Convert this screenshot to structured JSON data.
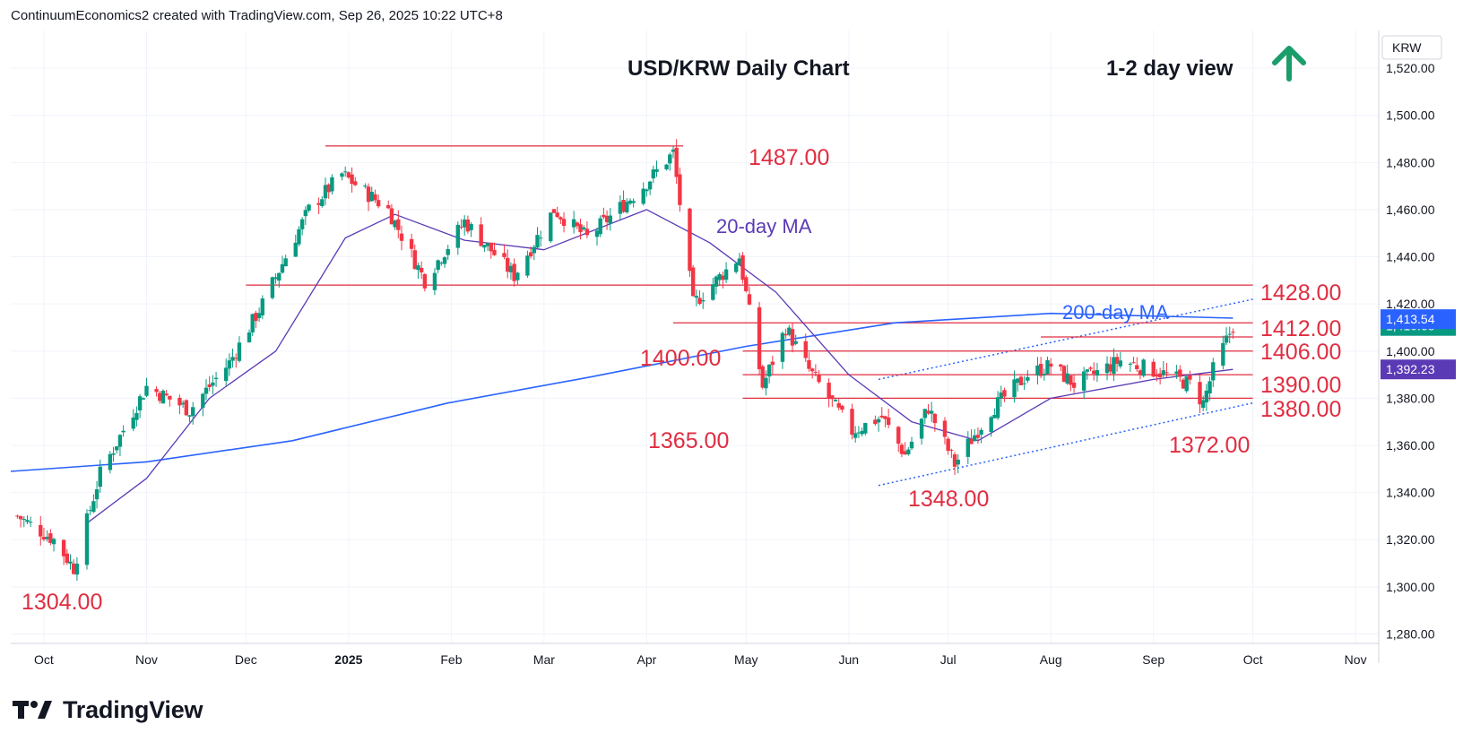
{
  "header": "ContinuumEconomics2 created with TradingView.com, Sep 26, 2025 10:22 UTC+8",
  "brand": "TradingView",
  "colors": {
    "up": "#089981",
    "down": "#f23645",
    "level": "#e02d41",
    "ma20": "#5b3ab6",
    "ma200": "#2962ff",
    "channel": "#2962ff",
    "arrow": "#1a9e6a",
    "grid": "#f0f3fa"
  },
  "chart_data": {
    "type": "candlestick",
    "title": "USD/KRW Daily Chart",
    "subtitle": "1-2 day view",
    "outlook_icon": "up-arrow-icon",
    "y_axis": {
      "currency": "KRW",
      "ylim": [
        1276,
        1536
      ],
      "ticks": [
        "1,280.00",
        "1,300.00",
        "1,320.00",
        "1,340.00",
        "1,360.00",
        "1,380.00",
        "1,400.00",
        "1,420.00",
        "1,440.00",
        "1,460.00",
        "1,480.00",
        "1,500.00",
        "1,520.00"
      ],
      "tick_values": [
        1280,
        1300,
        1320,
        1340,
        1360,
        1380,
        1400,
        1420,
        1440,
        1460,
        1480,
        1500,
        1520
      ]
    },
    "x_axis": {
      "range": [
        "2024-09-21",
        "2025-11-08"
      ],
      "month_labels": [
        {
          "label": "Oct",
          "date": "2024-10-01"
        },
        {
          "label": "Nov",
          "date": "2024-11-01"
        },
        {
          "label": "Dec",
          "date": "2024-12-01"
        },
        {
          "label": "2025",
          "date": "2025-01-01",
          "bold": true
        },
        {
          "label": "Feb",
          "date": "2025-02-01"
        },
        {
          "label": "Mar",
          "date": "2025-03-01"
        },
        {
          "label": "Apr",
          "date": "2025-04-01"
        },
        {
          "label": "May",
          "date": "2025-05-01"
        },
        {
          "label": "Jun",
          "date": "2025-06-01"
        },
        {
          "label": "Jul",
          "date": "2025-07-01"
        },
        {
          "label": "Aug",
          "date": "2025-08-01"
        },
        {
          "label": "Sep",
          "date": "2025-09-01"
        },
        {
          "label": "Oct",
          "date": "2025-10-01"
        },
        {
          "label": "Nov",
          "date": "2025-11-01"
        }
      ]
    },
    "price_path": [
      {
        "date": "2024-09-23",
        "close": 1330
      },
      {
        "date": "2024-10-04",
        "close": 1320
      },
      {
        "date": "2024-10-10",
        "close": 1308
      },
      {
        "date": "2024-10-18",
        "close": 1348
      },
      {
        "date": "2024-11-01",
        "close": 1385
      },
      {
        "date": "2024-11-14",
        "close": 1375
      },
      {
        "date": "2024-11-26",
        "close": 1395
      },
      {
        "date": "2024-12-06",
        "close": 1420
      },
      {
        "date": "2024-12-20",
        "close": 1460
      },
      {
        "date": "2024-12-30",
        "close": 1475
      },
      {
        "date": "2025-01-13",
        "close": 1460
      },
      {
        "date": "2025-01-24",
        "close": 1430
      },
      {
        "date": "2025-02-05",
        "close": 1455
      },
      {
        "date": "2025-02-20",
        "close": 1432
      },
      {
        "date": "2025-03-04",
        "close": 1460
      },
      {
        "date": "2025-03-14",
        "close": 1448
      },
      {
        "date": "2025-03-31",
        "close": 1470
      },
      {
        "date": "2025-04-09",
        "close": 1484
      },
      {
        "date": "2025-04-15",
        "close": 1420
      },
      {
        "date": "2025-04-29",
        "close": 1440
      },
      {
        "date": "2025-05-06",
        "close": 1385
      },
      {
        "date": "2025-05-13",
        "close": 1410
      },
      {
        "date": "2025-05-20",
        "close": 1392
      },
      {
        "date": "2025-06-02",
        "close": 1366
      },
      {
        "date": "2025-06-11",
        "close": 1372
      },
      {
        "date": "2025-06-18",
        "close": 1356
      },
      {
        "date": "2025-06-25",
        "close": 1376
      },
      {
        "date": "2025-07-03",
        "close": 1352
      },
      {
        "date": "2025-07-14",
        "close": 1375
      },
      {
        "date": "2025-07-25",
        "close": 1390
      },
      {
        "date": "2025-08-01",
        "close": 1394
      },
      {
        "date": "2025-08-08",
        "close": 1386
      },
      {
        "date": "2025-08-22",
        "close": 1396
      },
      {
        "date": "2025-09-03",
        "close": 1391
      },
      {
        "date": "2025-09-12",
        "close": 1386
      },
      {
        "date": "2025-09-16",
        "close": 1378
      },
      {
        "date": "2025-09-19",
        "close": 1392
      },
      {
        "date": "2025-09-25",
        "close": 1410.7
      }
    ],
    "ma20_path": [
      {
        "date": "2024-10-14",
        "value": 1327
      },
      {
        "date": "2024-11-01",
        "value": 1346
      },
      {
        "date": "2024-11-20",
        "value": 1380
      },
      {
        "date": "2024-12-10",
        "value": 1400
      },
      {
        "date": "2024-12-31",
        "value": 1448
      },
      {
        "date": "2025-01-15",
        "value": 1458
      },
      {
        "date": "2025-02-05",
        "value": 1447
      },
      {
        "date": "2025-03-01",
        "value": 1443
      },
      {
        "date": "2025-04-01",
        "value": 1460
      },
      {
        "date": "2025-04-20",
        "value": 1446
      },
      {
        "date": "2025-05-10",
        "value": 1425
      },
      {
        "date": "2025-06-01",
        "value": 1390
      },
      {
        "date": "2025-06-20",
        "value": 1370
      },
      {
        "date": "2025-07-10",
        "value": 1362
      },
      {
        "date": "2025-08-01",
        "value": 1380
      },
      {
        "date": "2025-09-01",
        "value": 1388
      },
      {
        "date": "2025-09-25",
        "value": 1392.23
      }
    ],
    "ma200_path": [
      {
        "date": "2024-09-21",
        "value": 1349
      },
      {
        "date": "2024-11-01",
        "value": 1353
      },
      {
        "date": "2024-12-15",
        "value": 1362
      },
      {
        "date": "2025-01-31",
        "value": 1378
      },
      {
        "date": "2025-03-15",
        "value": 1389
      },
      {
        "date": "2025-05-01",
        "value": 1402
      },
      {
        "date": "2025-06-15",
        "value": 1412
      },
      {
        "date": "2025-08-01",
        "value": 1416
      },
      {
        "date": "2025-09-25",
        "value": 1414
      }
    ],
    "levels": [
      {
        "value": 1487,
        "label": "1487.00",
        "start": "2024-12-25",
        "end": "2025-04-12",
        "label_side": "right"
      },
      {
        "value": 1428,
        "label": "1428.00",
        "start": "2024-12-01",
        "end": "2025-10-01",
        "label_side": "right"
      },
      {
        "value": 1412,
        "label": "1412.00",
        "start": "2025-04-09",
        "end": "2025-10-01",
        "label_side": "right"
      },
      {
        "value": 1406,
        "label": "1406.00",
        "start": "2025-07-29",
        "end": "2025-10-01",
        "label_side": "right"
      },
      {
        "value": 1400,
        "label": "1400.00",
        "start": "2025-04-30",
        "end": "2025-10-01",
        "label_side": "right"
      },
      {
        "value": 1390,
        "label": "1390.00",
        "start": "2025-04-30",
        "end": "2025-10-01",
        "label_side": "right"
      },
      {
        "value": 1380,
        "label": "1380.00",
        "start": "2025-04-30",
        "end": "2025-10-01",
        "label_side": "right"
      }
    ],
    "annotations": [
      {
        "text": "1487.00"
      },
      {
        "text": "1428.00"
      },
      {
        "text": "1412.00"
      },
      {
        "text": "1406.00"
      },
      {
        "text": "1400.00"
      },
      {
        "text": "1390.00"
      },
      {
        "text": "1380.00"
      },
      {
        "text": "1372.00"
      },
      {
        "text": "1365.00"
      },
      {
        "text": "1348.00"
      },
      {
        "text": "1304.00"
      },
      {
        "text": "20-day MA"
      },
      {
        "text": "200-day MA"
      }
    ],
    "channel": {
      "upper": [
        {
          "date": "2025-06-10",
          "value": 1388
        },
        {
          "date": "2025-10-01",
          "value": 1422
        }
      ],
      "lower": [
        {
          "date": "2025-06-10",
          "value": 1343
        },
        {
          "date": "2025-10-01",
          "value": 1378
        }
      ]
    },
    "price_tags": [
      {
        "text": "1,410.68",
        "value": 1410.68,
        "kind": "last"
      },
      {
        "text": "1,392.23",
        "value": 1392.23,
        "kind": "ma20"
      },
      {
        "text": "1,413.54",
        "value": 1413.54,
        "kind": "ma200"
      }
    ]
  }
}
